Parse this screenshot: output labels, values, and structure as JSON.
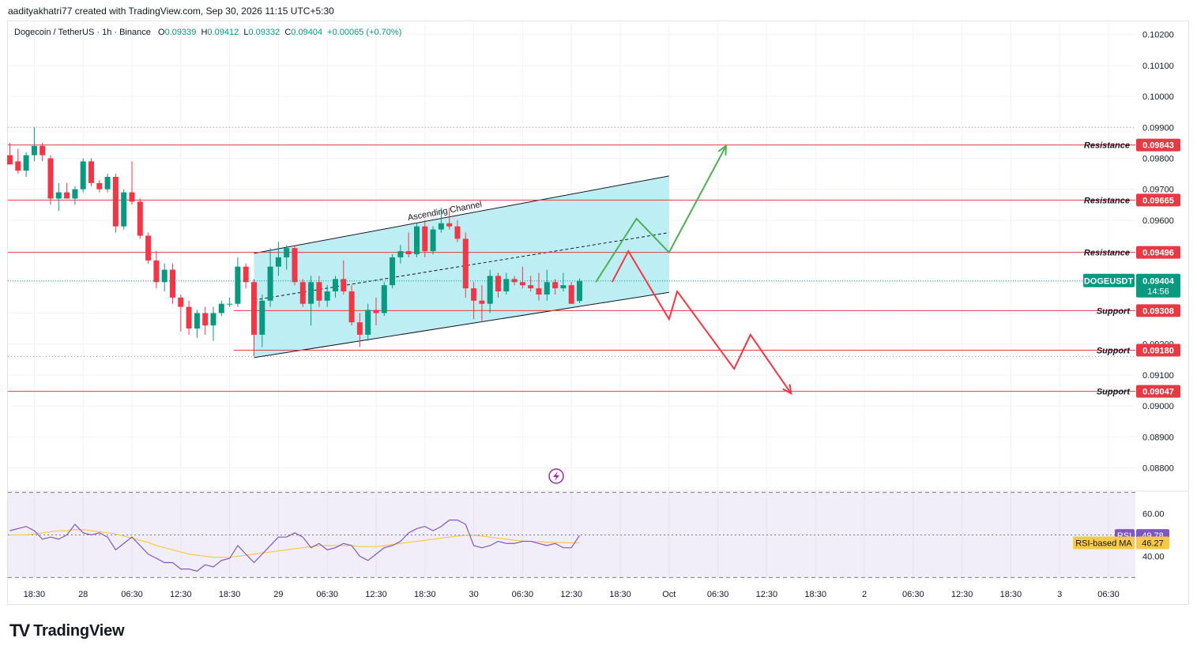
{
  "header": {
    "credit": "aadityakhatri77 created with TradingView.com, Sep 30, 2026 11:15 UTC+5:30"
  },
  "legend": {
    "symbol": "Dogecoin / TetherUS · 1h · Binance",
    "o_label": "O",
    "o_value": "0.09339",
    "h_label": "H",
    "h_value": "0.09412",
    "l_label": "L",
    "l_value": "0.09332",
    "c_label": "C",
    "c_value": "0.09404",
    "change": "+0.00065 (+0.70%)"
  },
  "brand": {
    "name": "TradingView",
    "logo": "TV"
  },
  "colors": {
    "up": "#089981",
    "down": "#f23645",
    "level": "#e53944",
    "channel_fill": "#b2ebf2",
    "rsi": "#7e57c2",
    "rsi_ma": "#f7c948",
    "arrow_up": "#4caf50",
    "arrow_down": "#f23645"
  },
  "chart_data": {
    "type": "candlestick",
    "symbol": "DOGEUSDT",
    "ylim": [
      0.0874,
      0.1024
    ],
    "y_ticks": [
      "0.10200",
      "0.10100",
      "0.10000",
      "0.09900",
      "0.09800",
      "0.09700",
      "0.09600",
      "0.09500",
      "0.09400",
      "0.09300",
      "0.09200",
      "0.09100",
      "0.09000",
      "0.08900",
      "0.08800"
    ],
    "x_ticks": [
      {
        "label": "18:30",
        "i": 3
      },
      {
        "label": "28",
        "i": 9
      },
      {
        "label": "06:30",
        "i": 15
      },
      {
        "label": "12:30",
        "i": 21
      },
      {
        "label": "18:30",
        "i": 27
      },
      {
        "label": "29",
        "i": 33
      },
      {
        "label": "06:30",
        "i": 39
      },
      {
        "label": "12:30",
        "i": 45
      },
      {
        "label": "18:30",
        "i": 51
      },
      {
        "label": "30",
        "i": 57
      },
      {
        "label": "06:30",
        "i": 63
      },
      {
        "label": "12:30",
        "i": 69
      },
      {
        "label": "18:30",
        "i": 75
      },
      {
        "label": "Oct",
        "i": 81
      },
      {
        "label": "06:30",
        "i": 87
      },
      {
        "label": "12:30",
        "i": 93
      },
      {
        "label": "18:30",
        "i": 99
      },
      {
        "label": "2",
        "i": 105
      },
      {
        "label": "06:30",
        "i": 111
      },
      {
        "label": "12:30",
        "i": 117
      },
      {
        "label": "18:30",
        "i": 123
      },
      {
        "label": "3",
        "i": 129
      },
      {
        "label": "06:30",
        "i": 135
      }
    ],
    "candles": [
      [
        0.0981,
        0.0985,
        0.0978,
        0.0978
      ],
      [
        0.0979,
        0.0983,
        0.0975,
        0.0976
      ],
      [
        0.0976,
        0.0982,
        0.0974,
        0.0981
      ],
      [
        0.0981,
        0.099,
        0.0979,
        0.0984
      ],
      [
        0.0984,
        0.0985,
        0.0979,
        0.0981
      ],
      [
        0.098,
        0.0981,
        0.0965,
        0.0967
      ],
      [
        0.0967,
        0.0972,
        0.0963,
        0.0969
      ],
      [
        0.0969,
        0.0972,
        0.0967,
        0.0967
      ],
      [
        0.0967,
        0.0971,
        0.0965,
        0.097
      ],
      [
        0.097,
        0.098,
        0.0969,
        0.0979
      ],
      [
        0.0979,
        0.098,
        0.0971,
        0.0972
      ],
      [
        0.0972,
        0.0973,
        0.0969,
        0.097
      ],
      [
        0.097,
        0.0975,
        0.0969,
        0.0974
      ],
      [
        0.0974,
        0.0975,
        0.0956,
        0.0958
      ],
      [
        0.0958,
        0.097,
        0.0957,
        0.0969
      ],
      [
        0.0969,
        0.0979,
        0.0965,
        0.0966
      ],
      [
        0.0966,
        0.0967,
        0.0954,
        0.0955
      ],
      [
        0.0955,
        0.0956,
        0.0946,
        0.0947
      ],
      [
        0.0947,
        0.095,
        0.0938,
        0.094
      ],
      [
        0.094,
        0.0946,
        0.0937,
        0.0944
      ],
      [
        0.0944,
        0.0946,
        0.0933,
        0.0935
      ],
      [
        0.0935,
        0.0936,
        0.0924,
        0.0932
      ],
      [
        0.0932,
        0.0934,
        0.0923,
        0.0925
      ],
      [
        0.0925,
        0.0931,
        0.0922,
        0.093
      ],
      [
        0.093,
        0.0932,
        0.0923,
        0.0926
      ],
      [
        0.0926,
        0.0932,
        0.0921,
        0.093
      ],
      [
        0.093,
        0.0934,
        0.0929,
        0.0933
      ],
      [
        0.0933,
        0.0935,
        0.0932,
        0.0933
      ],
      [
        0.0933,
        0.0948,
        0.0932,
        0.0945
      ],
      [
        0.0945,
        0.0946,
        0.0938,
        0.094
      ],
      [
        0.094,
        0.0941,
        0.0916,
        0.0923
      ],
      [
        0.0923,
        0.0936,
        0.0919,
        0.0934
      ],
      [
        0.0934,
        0.0951,
        0.0932,
        0.0945
      ],
      [
        0.0945,
        0.0953,
        0.0942,
        0.0948
      ],
      [
        0.0948,
        0.0952,
        0.0944,
        0.0951
      ],
      [
        0.0951,
        0.0952,
        0.0939,
        0.094
      ],
      [
        0.094,
        0.0941,
        0.0932,
        0.0933
      ],
      [
        0.0933,
        0.0942,
        0.0926,
        0.094
      ],
      [
        0.094,
        0.0942,
        0.0932,
        0.0934
      ],
      [
        0.0934,
        0.0939,
        0.0932,
        0.0937
      ],
      [
        0.0937,
        0.0942,
        0.0935,
        0.0941
      ],
      [
        0.0941,
        0.0947,
        0.0936,
        0.0937
      ],
      [
        0.0937,
        0.0939,
        0.0926,
        0.0927
      ],
      [
        0.0927,
        0.093,
        0.0919,
        0.0923
      ],
      [
        0.0923,
        0.0933,
        0.0921,
        0.0931
      ],
      [
        0.0931,
        0.0935,
        0.0926,
        0.093
      ],
      [
        0.093,
        0.094,
        0.0929,
        0.0939
      ],
      [
        0.0939,
        0.0949,
        0.0938,
        0.0948
      ],
      [
        0.0948,
        0.0952,
        0.0946,
        0.095
      ],
      [
        0.095,
        0.0956,
        0.0948,
        0.0949
      ],
      [
        0.0949,
        0.0959,
        0.0948,
        0.0958
      ],
      [
        0.0958,
        0.096,
        0.0948,
        0.095
      ],
      [
        0.095,
        0.0958,
        0.0949,
        0.0957
      ],
      [
        0.0957,
        0.0964,
        0.0956,
        0.0959
      ],
      [
        0.0959,
        0.0964,
        0.0957,
        0.0958
      ],
      [
        0.0958,
        0.096,
        0.0953,
        0.0954
      ],
      [
        0.0954,
        0.0956,
        0.0935,
        0.0938
      ],
      [
        0.0938,
        0.094,
        0.0928,
        0.0934
      ],
      [
        0.0934,
        0.0939,
        0.0927,
        0.0933
      ],
      [
        0.0933,
        0.0944,
        0.093,
        0.0942
      ],
      [
        0.0942,
        0.0943,
        0.0935,
        0.0937
      ],
      [
        0.0937,
        0.0943,
        0.0936,
        0.0941
      ],
      [
        0.0941,
        0.0942,
        0.0939,
        0.094
      ],
      [
        0.094,
        0.0945,
        0.0938,
        0.0939
      ],
      [
        0.0939,
        0.0942,
        0.0937,
        0.0938
      ],
      [
        0.0938,
        0.0943,
        0.0934,
        0.0936
      ],
      [
        0.0936,
        0.0944,
        0.0934,
        0.094
      ],
      [
        0.094,
        0.0941,
        0.0936,
        0.0938
      ],
      [
        0.0938,
        0.0943,
        0.0937,
        0.0939
      ],
      [
        0.0939,
        0.094,
        0.0933,
        0.0933
      ],
      [
        0.09339,
        0.09412,
        0.09332,
        0.09404
      ]
    ],
    "levels": [
      {
        "label": "Resistance",
        "value": "0.09843"
      },
      {
        "label": "Resistance",
        "value": "0.09665"
      },
      {
        "label": "Resistance",
        "value": "0.09496"
      },
      {
        "label": "Support",
        "value": "0.09308"
      },
      {
        "label": "Support",
        "value": "0.09180"
      },
      {
        "label": "Support",
        "value": "0.09047"
      }
    ],
    "channel": {
      "label": "Ascending Channel",
      "start_i": 30,
      "end_i": 81,
      "upper": [
        0.09493,
        0.09743
      ],
      "mid": [
        0.09342,
        0.0956
      ],
      "lower": [
        0.09156,
        0.09367
      ]
    },
    "scenario_up": [
      [
        72,
        0.094
      ],
      [
        77,
        0.09605
      ],
      [
        81,
        0.09496
      ],
      [
        88,
        0.0984
      ]
    ],
    "scenario_down": [
      [
        74,
        0.094
      ],
      [
        76,
        0.095
      ],
      [
        81,
        0.0928
      ],
      [
        82,
        0.0937
      ],
      [
        89,
        0.0912
      ],
      [
        91,
        0.0923
      ],
      [
        96,
        0.0904
      ]
    ],
    "last_price": {
      "symbol": "DOGEUSDT",
      "value": "0.09404",
      "countdown": "14:56"
    },
    "rsi": {
      "label": "RSI",
      "value": "49.78",
      "ma_label": "RSI-based MA",
      "ma_value": "46.27",
      "ylim": [
        32,
        68
      ],
      "band_upper": 70,
      "band_lower": 30,
      "ticks": [
        "60.00",
        "40.00"
      ],
      "values": [
        52,
        53,
        54,
        52,
        48,
        49,
        48,
        50,
        55,
        51,
        50,
        51,
        49,
        43,
        46,
        49,
        45,
        41,
        39,
        37,
        37,
        34,
        34,
        33,
        36,
        35,
        38,
        39,
        45,
        41,
        37,
        41,
        45,
        49,
        49,
        51,
        49,
        44,
        46,
        43,
        44,
        46,
        45,
        40,
        38,
        41,
        44,
        45,
        47,
        51,
        53,
        54,
        52,
        54,
        57,
        57,
        55,
        45,
        44,
        45,
        47,
        46,
        46,
        47,
        47,
        46,
        45,
        46,
        44,
        44,
        49.78
      ],
      "ma": [
        50,
        50,
        50,
        50.5,
        51,
        51.5,
        52,
        52,
        52.5,
        52.5,
        52,
        51.5,
        51,
        50.5,
        49.5,
        48.5,
        47.5,
        46.5,
        45,
        44,
        43,
        42,
        41,
        40.5,
        40,
        39.5,
        39.5,
        39.5,
        40,
        40.5,
        41,
        41.5,
        42,
        42.5,
        43,
        43.5,
        44,
        44.5,
        45,
        45,
        45,
        45,
        45,
        44.5,
        44.5,
        44.5,
        45,
        45.5,
        46,
        46.5,
        47,
        47.5,
        48,
        48.5,
        49,
        49.5,
        49.8,
        49.8,
        49.5,
        49,
        48.5,
        48,
        47.5,
        47.2,
        47,
        46.8,
        46.6,
        46.5,
        46.4,
        46.3,
        46.27
      ]
    }
  }
}
